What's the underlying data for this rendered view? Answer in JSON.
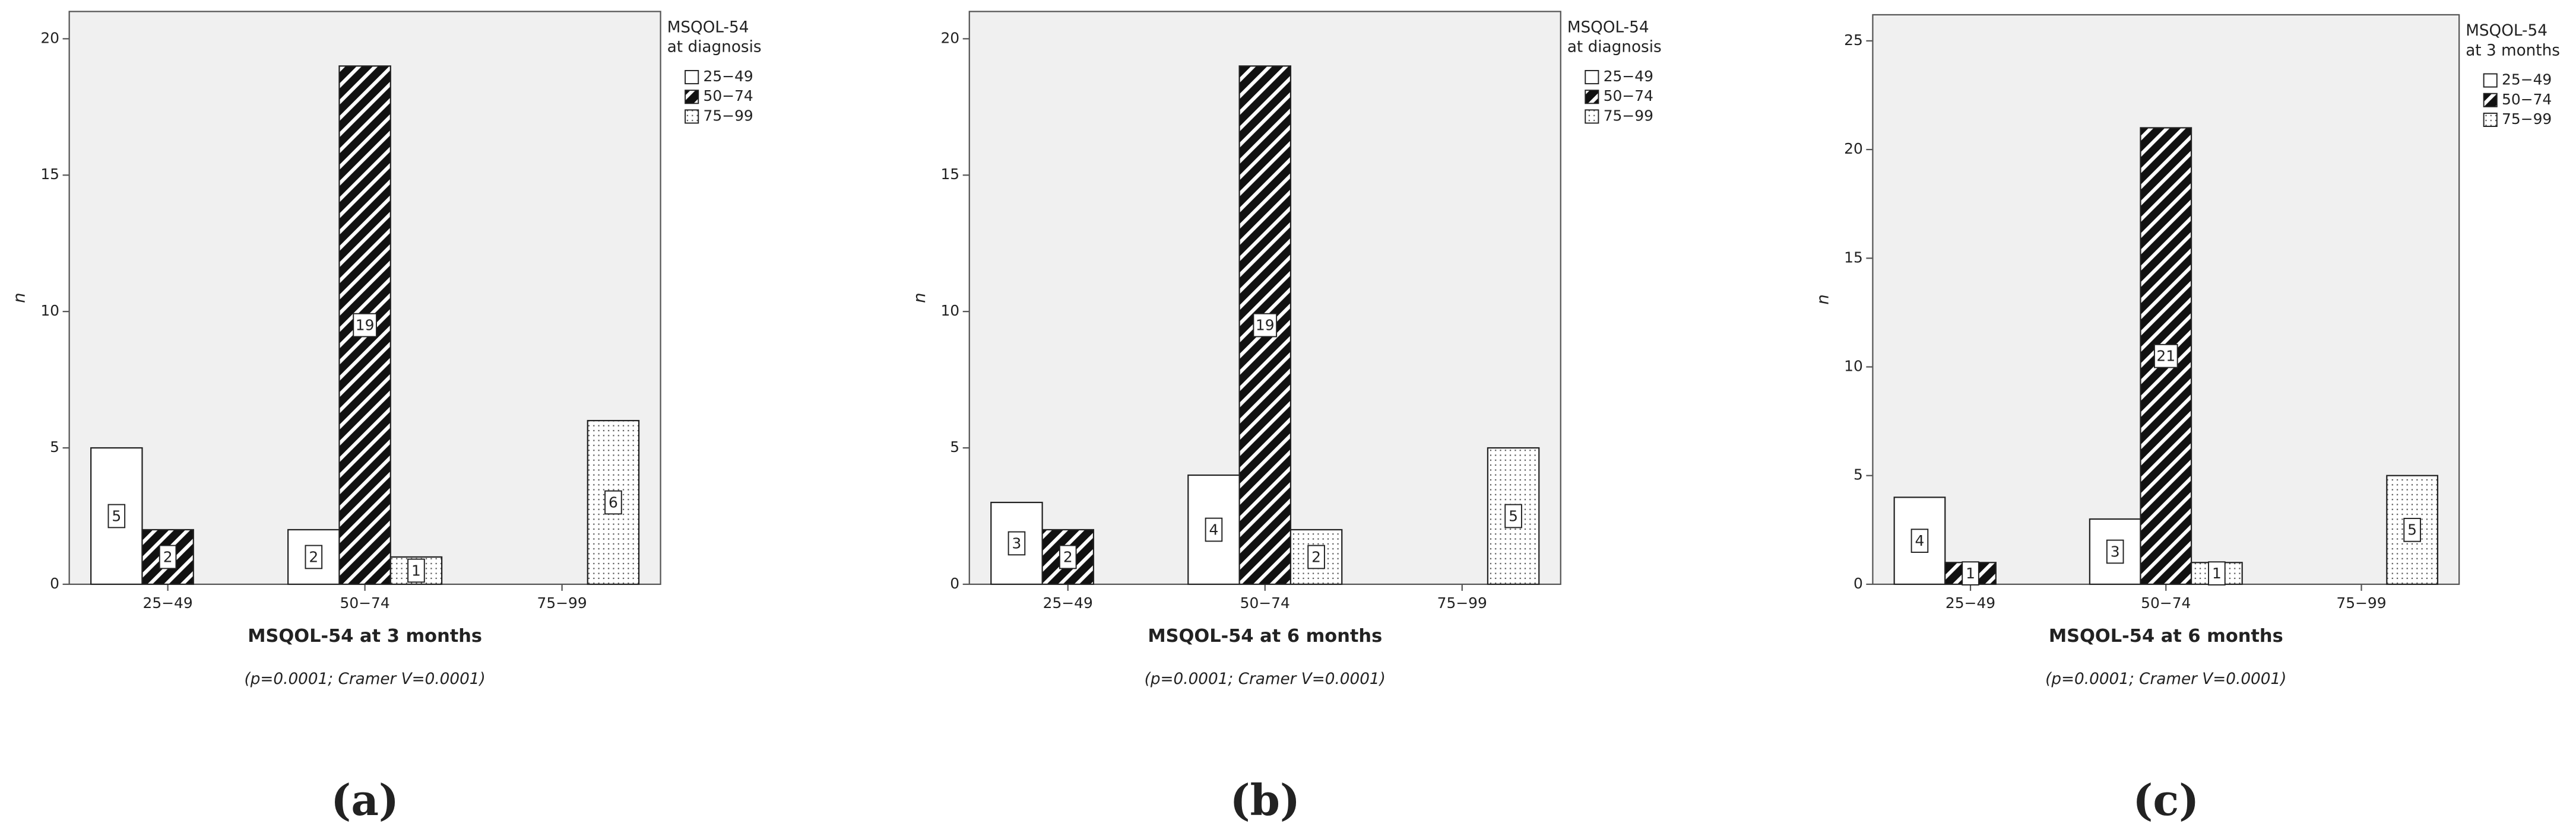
{
  "chart_data": [
    {
      "type": "bar",
      "label": "(a)",
      "x_label": "MSQOL-54 at 3 months",
      "subtitle": "(p=0.0001; Cramer V=0.0001)",
      "y_label": "n",
      "legend_title": [
        "MSQOL-54",
        "at diagnosis"
      ],
      "categories": [
        "25−49",
        "50−74",
        "75−99"
      ],
      "series": [
        {
          "name": "25−49",
          "color": "#ffffff",
          "values": [
            5,
            2,
            null
          ]
        },
        {
          "name": "50−74",
          "color": "hatch",
          "values": [
            2,
            19,
            null
          ]
        },
        {
          "name": "75−99",
          "color": "dots",
          "values": [
            null,
            1,
            6
          ]
        }
      ],
      "ylim": [
        0,
        21
      ],
      "yticks": [
        0,
        5,
        10,
        15,
        20
      ]
    },
    {
      "type": "bar",
      "label": "(b)",
      "x_label": "MSQOL-54 at 6 months",
      "subtitle": "(p=0.0001; Cramer V=0.0001)",
      "y_label": "n",
      "legend_title": [
        "MSQOL-54",
        "at diagnosis"
      ],
      "categories": [
        "25−49",
        "50−74",
        "75−99"
      ],
      "series": [
        {
          "name": "25−49",
          "color": "#ffffff",
          "values": [
            3,
            4,
            null
          ]
        },
        {
          "name": "50−74",
          "color": "hatch",
          "values": [
            2,
            19,
            null
          ]
        },
        {
          "name": "75−99",
          "color": "dots",
          "values": [
            null,
            2,
            5
          ]
        }
      ],
      "ylim": [
        0,
        21
      ],
      "yticks": [
        0,
        5,
        10,
        15,
        20
      ]
    },
    {
      "type": "bar",
      "label": "(c)",
      "x_label": "MSQOL-54 at 6 months",
      "subtitle": "(p=0.0001; Cramer V=0.0001)",
      "y_label": "n",
      "legend_title": [
        "MSQOL-54",
        "at 3 months"
      ],
      "categories": [
        "25−49",
        "50−74",
        "75−99"
      ],
      "series": [
        {
          "name": "25−49",
          "color": "#ffffff",
          "values": [
            4,
            3,
            null
          ]
        },
        {
          "name": "50−74",
          "color": "hatch",
          "values": [
            1,
            21,
            null
          ]
        },
        {
          "name": "75−99",
          "color": "dots",
          "values": [
            null,
            1,
            5
          ]
        }
      ],
      "ylim": [
        0,
        26.2
      ],
      "yticks": [
        0,
        5,
        10,
        15,
        20,
        25
      ]
    }
  ]
}
